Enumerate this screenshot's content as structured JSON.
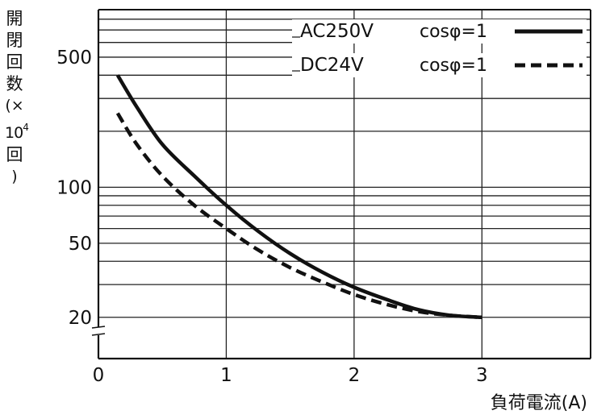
{
  "chart_data": {
    "type": "line",
    "y_scale": "log",
    "xlabel": "負荷電流(A)",
    "ylabel_lines": [
      "開",
      "閉",
      "回",
      "数",
      "(×",
      "10",
      "4",
      "回",
      ")"
    ],
    "xlim": [
      0,
      3.85
    ],
    "ylim": [
      12,
      900
    ],
    "x_ticks": [
      0,
      1,
      2,
      3
    ],
    "x_tick_labels": [
      "0",
      "1",
      "2",
      "3"
    ],
    "y_tick_values": [
      500,
      100,
      50,
      20
    ],
    "y_tick_labels": [
      "500",
      "100",
      "50",
      "20"
    ],
    "grid": true,
    "y_grid_values": [
      20,
      30,
      40,
      50,
      60,
      70,
      80,
      90,
      100,
      200,
      300,
      400,
      500,
      600,
      700,
      800
    ],
    "x_grid_values": [
      1,
      2,
      3
    ],
    "axis_break": true,
    "legend_position": "top-right",
    "series": [
      {
        "name": "AC250V cosφ=1",
        "label": "AC250V",
        "cond": "cosφ=1",
        "style": "solid",
        "color": "#111111",
        "x": [
          0.15,
          0.3,
          0.5,
          0.75,
          1.0,
          1.25,
          1.5,
          1.75,
          2.0,
          2.25,
          2.5,
          2.75,
          3.0
        ],
        "y": [
          400,
          270,
          170,
          115,
          80,
          58,
          44,
          35,
          29,
          25,
          22,
          20.5,
          20
        ]
      },
      {
        "name": "DC24V cosφ=1",
        "label": "DC24V",
        "cond": "cosφ=1",
        "style": "dashed",
        "color": "#111111",
        "x": [
          0.15,
          0.3,
          0.5,
          0.75,
          1.0,
          1.25,
          1.5,
          1.75,
          2.0,
          2.25,
          2.5,
          2.75,
          3.0
        ],
        "y": [
          250,
          170,
          115,
          80,
          60,
          46,
          37,
          31,
          26.5,
          23.5,
          21.5,
          20.5,
          20
        ]
      }
    ]
  }
}
